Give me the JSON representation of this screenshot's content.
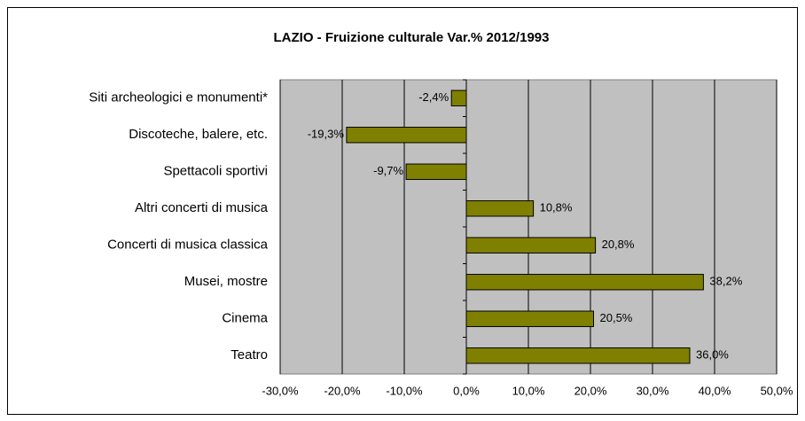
{
  "chart_data": {
    "type": "barh",
    "title": "LAZIO - Fruizione culturale Var.% 2012/1993",
    "categories": [
      "Siti archeologici e monumenti*",
      "Discoteche, balere, etc.",
      "Spettacoli sportivi",
      "Altri concerti di musica",
      "Concerti di musica classica",
      "Musei, mostre",
      "Cinema",
      "Teatro"
    ],
    "values": [
      -2.4,
      -19.3,
      -9.7,
      10.8,
      20.8,
      38.2,
      20.5,
      36.0
    ],
    "value_labels": [
      "-2,4%",
      "-19,3%",
      "-9,7%",
      "10,8%",
      "20,8%",
      "38,2%",
      "20,5%",
      "36,0%"
    ],
    "color": "#808000",
    "xlim": [
      -30,
      50
    ],
    "xticks": [
      {
        "value": -30,
        "label": "-30,0%"
      },
      {
        "value": -20,
        "label": "-20,0%"
      },
      {
        "value": -10,
        "label": "-10,0%"
      },
      {
        "value": 0,
        "label": "0,0%"
      },
      {
        "value": 10,
        "label": "10,0%"
      },
      {
        "value": 20,
        "label": "20,0%"
      },
      {
        "value": 30,
        "label": "30,0%"
      },
      {
        "value": 40,
        "label": "40,0%"
      },
      {
        "value": 50,
        "label": "50,0%"
      }
    ],
    "grid": true
  }
}
